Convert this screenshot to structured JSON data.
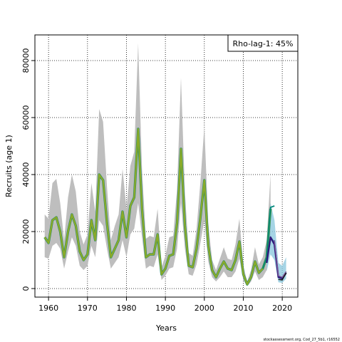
{
  "chart_data": {
    "type": "line",
    "xlabel": "Years",
    "ylabel": "Recruits (age 1)",
    "xlim": [
      1956.5,
      2024
    ],
    "ylim": [
      -3000,
      89000
    ],
    "x_ticks": [
      1960,
      1970,
      1980,
      1990,
      2000,
      2010,
      2020
    ],
    "y_ticks": [
      0,
      20000,
      40000,
      60000,
      80000
    ],
    "grid": true,
    "legend_text": "Rho-lag-1: 45%",
    "legend_position": "top-right",
    "credit": "stockassessment.org, Cod_27_5b1, r16552",
    "colors": {
      "band": "#bebebe",
      "main_line": "#8aaa2a",
      "main_line_edge": "#1a8a6a",
      "peel_band": "#8ec9df",
      "peel_line_a": "#00877a",
      "peel_line_b": "#3aa0c0",
      "peel_line_c": "#2e1a7a",
      "peel_line_d": "#7f5a9a",
      "peel_line_e": "#151515"
    },
    "series": [
      {
        "type": "line",
        "x": [
          1959,
          1960,
          1961,
          1962,
          1963,
          1964,
          1965,
          1966,
          1967,
          1968,
          1969,
          1970,
          1971,
          1972,
          1973,
          1974,
          1975,
          1976,
          1977,
          1978,
          1979,
          1980,
          1981,
          1982,
          1983,
          1984,
          1985,
          1986,
          1987,
          1988,
          1989,
          1990,
          1991,
          1992,
          1993,
          1994,
          1995,
          1996,
          1997,
          1998,
          1999,
          2000,
          2001,
          2002,
          2003,
          2004,
          2005,
          2006,
          2007,
          2008,
          2009,
          2010,
          2011,
          2012,
          2013,
          2014,
          2015,
          2016,
          2017
        ],
        "values": [
          18000,
          16000,
          24000,
          25000,
          20000,
          11000,
          20000,
          26000,
          22000,
          13000,
          10000,
          12000,
          24000,
          17000,
          40000,
          38000,
          23000,
          11000,
          14000,
          17000,
          27000,
          18000,
          29000,
          32000,
          56000,
          28000,
          11000,
          12000,
          12000,
          19000,
          5000,
          7000,
          11500,
          12000,
          23000,
          49000,
          22000,
          8000,
          7500,
          14000,
          25000,
          38000,
          15000,
          6500,
          4000,
          7000,
          9500,
          7000,
          6500,
          10000,
          16500,
          5000,
          1500,
          4000,
          9500,
          5500,
          7000,
          11000,
          28000
        ],
        "lower": [
          11000,
          10500,
          15000,
          16000,
          14000,
          7000,
          13000,
          18000,
          15000,
          8000,
          6500,
          8000,
          15000,
          11000,
          24000,
          22000,
          14000,
          7000,
          9000,
          11000,
          17000,
          11000,
          19000,
          21000,
          30000,
          18000,
          7000,
          8000,
          7500,
          12000,
          3000,
          4500,
          7000,
          7500,
          14000,
          30000,
          14000,
          5000,
          4500,
          8500,
          16000,
          24000,
          9500,
          4000,
          2500,
          4000,
          6000,
          4000,
          4000,
          6000,
          10500,
          3000,
          800,
          2500,
          6000,
          3000,
          4000,
          6500,
          18000
        ],
        "upper": [
          26000,
          24500,
          37000,
          38500,
          30000,
          17000,
          32000,
          40000,
          34000,
          20000,
          15500,
          19000,
          37000,
          27000,
          63000,
          58500,
          36000,
          17000,
          22000,
          26000,
          42000,
          28000,
          43000,
          48000,
          86000,
          42000,
          17500,
          18500,
          18000,
          28000,
          7500,
          11500,
          18000,
          18500,
          35000,
          74000,
          34000,
          12500,
          11500,
          21000,
          37500,
          57000,
          23000,
          10000,
          6500,
          10500,
          14500,
          10500,
          10000,
          15500,
          24500,
          8000,
          2500,
          6500,
          14500,
          8500,
          11000,
          17000,
          40000
        ]
      },
      {
        "type": "line",
        "x": [
          2016,
          2017,
          2018,
          2019,
          2020,
          2021
        ],
        "values": [
          9000,
          18000,
          15500,
          4000,
          3500,
          5500
        ],
        "lower": [
          6000,
          12000,
          10000,
          2200,
          2000,
          3500
        ],
        "upper": [
          14000,
          30000,
          24000,
          9000,
          8000,
          11000
        ]
      }
    ]
  }
}
